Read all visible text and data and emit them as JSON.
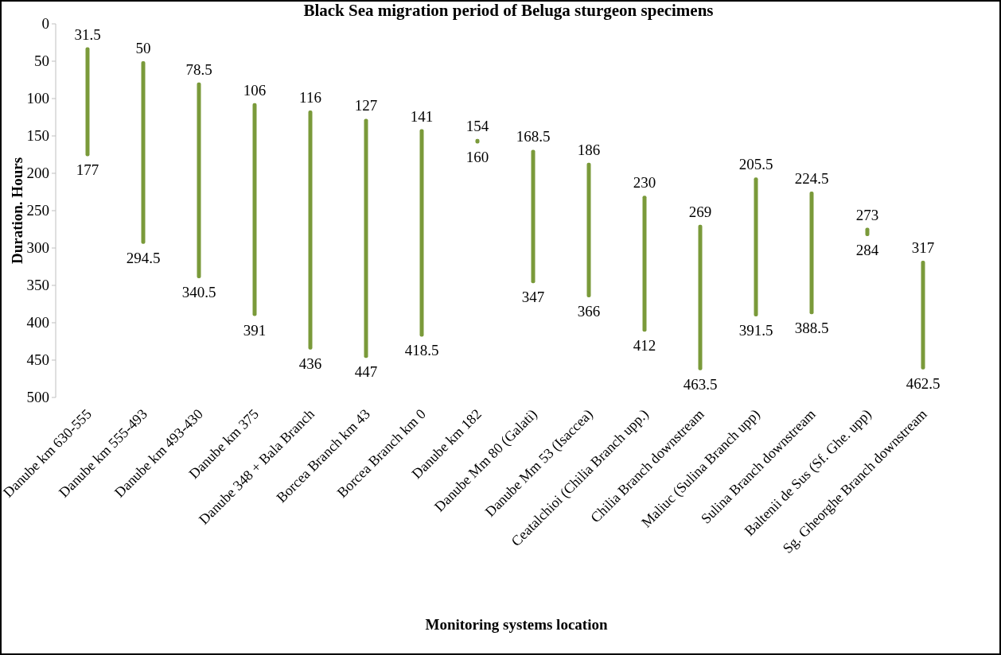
{
  "chart_data": {
    "type": "bar",
    "title": "Black Sea migration period of Beluga sturgeon specimens",
    "xlabel": "Monitoring systems location",
    "ylabel": "Duration. Hours",
    "categories": [
      "Danube km 630-555",
      "Danube km 555-493",
      "Danube km 493-430",
      "Danube km 375",
      "Danube 348 + Bala Branch",
      "Borcea Branch km 43",
      "Borcea Branch km 0",
      "Danube km 182",
      "Danube Mm 80 (Galati)",
      "Danube Mm 53 (Isaccea)",
      "Ceatalchioi (Chilia Branch upp.)",
      "Chilia Branch downstream",
      "Maliuc (Sulina Branch upp)",
      "Sulina Branch downstream",
      "Baltenii de Sus (Sf. Ghe. upp)",
      "Sg. Gheorghe Branch downstream"
    ],
    "base": [
      31.5,
      50,
      78.5,
      106,
      116,
      127,
      141,
      154,
      168.5,
      186,
      230,
      269,
      205.5,
      224.5,
      273,
      317
    ],
    "values": [
      145.5,
      244.5,
      262,
      285,
      320,
      320,
      277.5,
      6,
      178.5,
      180,
      182,
      194.5,
      186,
      164,
      11,
      145.5
    ],
    "value_labels": [
      "177",
      "294.5",
      "340.5",
      "391",
      "436",
      "447",
      "418.5",
      "160",
      "347",
      "366",
      "412",
      "463.5",
      "391.5",
      "388.5",
      "284",
      "462.5"
    ],
    "color": "#7a9a3a",
    "annotations": [
      {
        "text": "31.5",
        "x": "Danube km 630-555",
        "y": 31.5
      },
      {
        "text": "50",
        "x": "Danube km 555-493",
        "y": 50
      },
      {
        "text": "78.5",
        "x": "Danube km 493-430",
        "y": 78.5
      },
      {
        "text": "106",
        "x": "Danube km 375",
        "y": 106
      },
      {
        "text": "116",
        "x": "Danube 348 + Bala Branch",
        "y": 116
      },
      {
        "text": "127",
        "x": "Borcea Branch km 43",
        "y": 127
      },
      {
        "text": "141",
        "x": "Borcea Branch km 0",
        "y": 141
      },
      {
        "text": "154",
        "x": "Danube km 182",
        "y": 154
      },
      {
        "text": "168.5",
        "x": "Danube Mm 80 (Galati)",
        "y": 168.5
      },
      {
        "text": "186",
        "x": "Danube Mm 53 (Isaccea)",
        "y": 186
      },
      {
        "text": "230",
        "x": "Ceatalchioi (Chilia Branch upp.)",
        "y": 230
      },
      {
        "text": "269",
        "x": "Chilia Branch downstream",
        "y": 269
      },
      {
        "text": "205.5",
        "x": "Maliuc (Sulina Branch upp)",
        "y": 205.5
      },
      {
        "text": "224.5",
        "x": "Sulina Branch downstream",
        "y": 224.5
      },
      {
        "text": "273",
        "x": "Baltenii de Sus (Sf. Ghe. upp)",
        "y": 273
      },
      {
        "text": "317",
        "x": "Sg. Gheorghe Branch downstream",
        "y": 317
      }
    ],
    "ylim": [
      500,
      0
    ],
    "yticks": [
      0,
      50,
      100,
      150,
      200,
      250,
      300,
      350,
      400,
      450,
      500
    ],
    "grid": false
  }
}
